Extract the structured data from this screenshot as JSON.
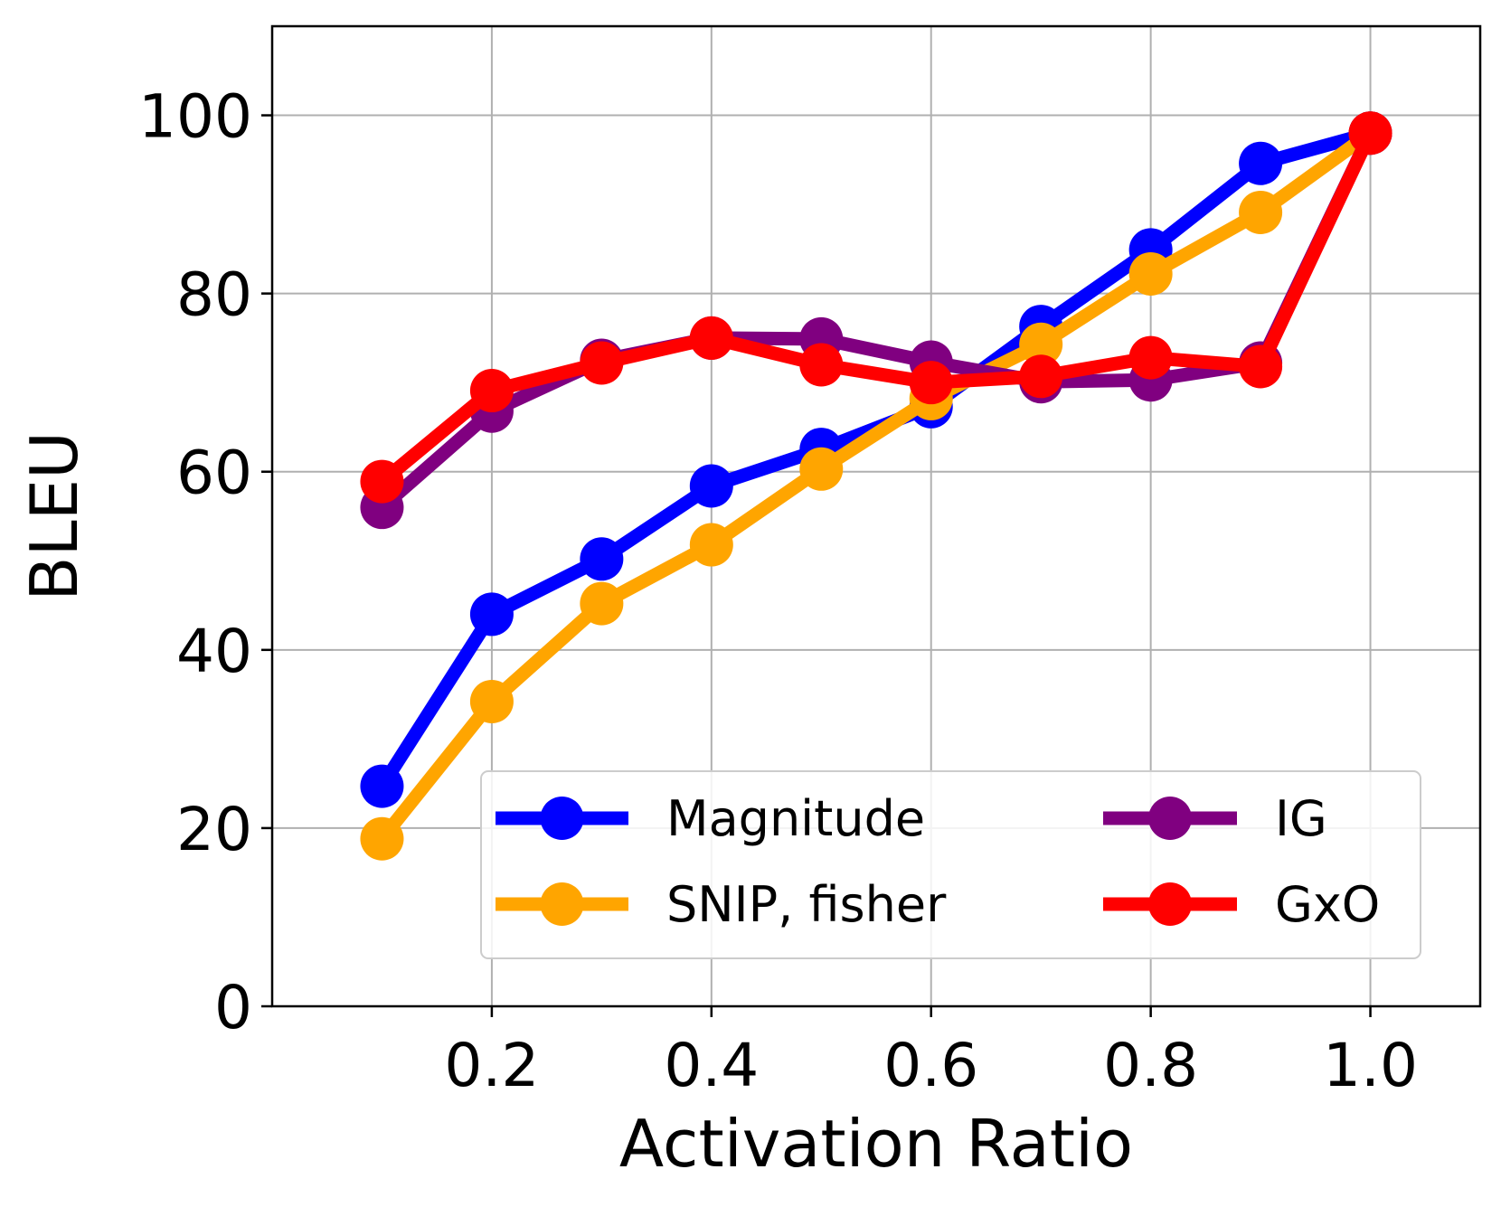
{
  "chart_data": {
    "type": "line",
    "xlabel": "Activation Ratio",
    "ylabel": "BLEU",
    "xlim": [
      0.0,
      1.1
    ],
    "ylim": [
      0,
      110
    ],
    "xticks": [
      0.2,
      0.4,
      0.6,
      0.8,
      1.0
    ],
    "xtick_labels": [
      "0.2",
      "0.4",
      "0.6",
      "0.8",
      "1.0"
    ],
    "yticks": [
      0,
      20,
      40,
      60,
      80,
      100
    ],
    "ytick_labels": [
      "0",
      "20",
      "40",
      "60",
      "80",
      "100"
    ],
    "grid": true,
    "legend_position": "lower-right",
    "legend_columns": 2,
    "x": [
      0.1,
      0.2,
      0.3,
      0.4,
      0.5,
      0.6,
      0.7,
      0.8,
      0.9,
      1.0
    ],
    "series": [
      {
        "name": "Magnitude",
        "color": "#0000ff",
        "values": [
          24.7,
          44.0,
          50.2,
          58.4,
          62.5,
          67.3,
          76.3,
          84.9,
          94.6,
          98.0
        ]
      },
      {
        "name": "SNIP, fisher",
        "color": "#ffa500",
        "values": [
          18.8,
          34.2,
          45.2,
          51.8,
          60.3,
          68.2,
          74.3,
          82.2,
          89.1,
          98.0
        ]
      },
      {
        "name": "IG",
        "color": "#800080",
        "values": [
          56.0,
          66.8,
          72.5,
          75.0,
          74.9,
          72.3,
          70.1,
          70.3,
          72.2,
          98.0
        ]
      },
      {
        "name": "GxO",
        "color": "#ff0000",
        "values": [
          58.9,
          69.1,
          72.2,
          75.0,
          72.0,
          70.0,
          70.7,
          72.8,
          71.8,
          98.0
        ]
      }
    ]
  }
}
